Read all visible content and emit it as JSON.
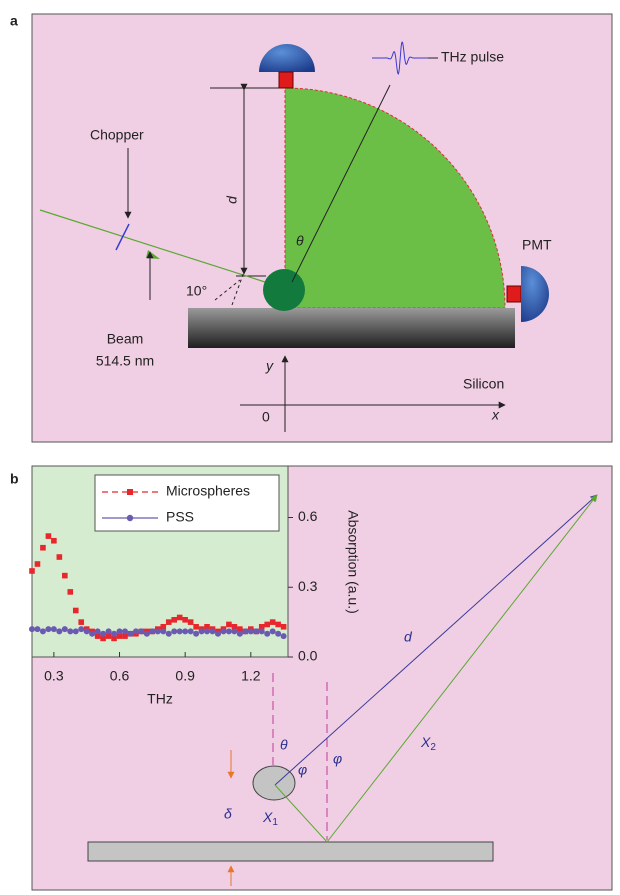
{
  "panel_a": {
    "label": "a",
    "chopper": "Chopper",
    "beam": "Beam",
    "wavelength": "514.5 nm",
    "angle": "10°",
    "d": "d",
    "theta": "θ",
    "thz_pulse": "THz pulse",
    "pmt": "PMT",
    "y_axis": "y",
    "x_axis": "x",
    "origin": "0",
    "silicon": "Silicon"
  },
  "panel_b": {
    "label": "b",
    "d": "d",
    "theta": "θ",
    "phi": "φ",
    "x1": {
      "main": "X",
      "sub": "1"
    },
    "x2": {
      "main": "X",
      "sub": "2"
    },
    "delta": "δ"
  },
  "chart_data": {
    "type": "line",
    "xlabel": "THz",
    "ylabel": "Absorption (a.u.)",
    "x": [
      0.2,
      0.225,
      0.25,
      0.275,
      0.3,
      0.325,
      0.35,
      0.375,
      0.4,
      0.425,
      0.45,
      0.475,
      0.5,
      0.525,
      0.55,
      0.575,
      0.6,
      0.625,
      0.65,
      0.675,
      0.7,
      0.725,
      0.75,
      0.775,
      0.8,
      0.825,
      0.85,
      0.875,
      0.9,
      0.925,
      0.95,
      0.975,
      1.0,
      1.025,
      1.05,
      1.075,
      1.1,
      1.125,
      1.15,
      1.175,
      1.2,
      1.225,
      1.25,
      1.275,
      1.3,
      1.325,
      1.35
    ],
    "series": [
      {
        "name": "Microspheres",
        "color": "#e8262b",
        "marker": "square",
        "values": [
          0.37,
          0.4,
          0.47,
          0.52,
          0.5,
          0.43,
          0.35,
          0.28,
          0.2,
          0.15,
          0.12,
          0.11,
          0.09,
          0.08,
          0.09,
          0.08,
          0.09,
          0.09,
          0.1,
          0.1,
          0.11,
          0.11,
          0.11,
          0.12,
          0.13,
          0.15,
          0.16,
          0.17,
          0.16,
          0.15,
          0.13,
          0.12,
          0.13,
          0.12,
          0.11,
          0.12,
          0.14,
          0.13,
          0.12,
          0.11,
          0.12,
          0.11,
          0.13,
          0.14,
          0.15,
          0.14,
          0.13
        ]
      },
      {
        "name": "PSS",
        "color": "#6a5bb0",
        "marker": "circle",
        "values": [
          0.12,
          0.12,
          0.11,
          0.12,
          0.12,
          0.11,
          0.12,
          0.11,
          0.11,
          0.12,
          0.11,
          0.1,
          0.11,
          0.1,
          0.11,
          0.1,
          0.11,
          0.11,
          0.1,
          0.11,
          0.11,
          0.1,
          0.11,
          0.11,
          0.11,
          0.1,
          0.11,
          0.11,
          0.11,
          0.11,
          0.1,
          0.11,
          0.11,
          0.11,
          0.1,
          0.11,
          0.11,
          0.11,
          0.1,
          0.11,
          0.11,
          0.11,
          0.11,
          0.1,
          0.11,
          0.1,
          0.09
        ]
      }
    ],
    "xlim": [
      0.2,
      1.37
    ],
    "ylim": [
      0,
      0.8
    ],
    "xticks": [
      0.3,
      0.6,
      0.9,
      1.2
    ],
    "yticks": [
      {
        "value": 0,
        "label": "0.0"
      },
      0.3,
      0.6
    ],
    "legend": "upper right"
  }
}
